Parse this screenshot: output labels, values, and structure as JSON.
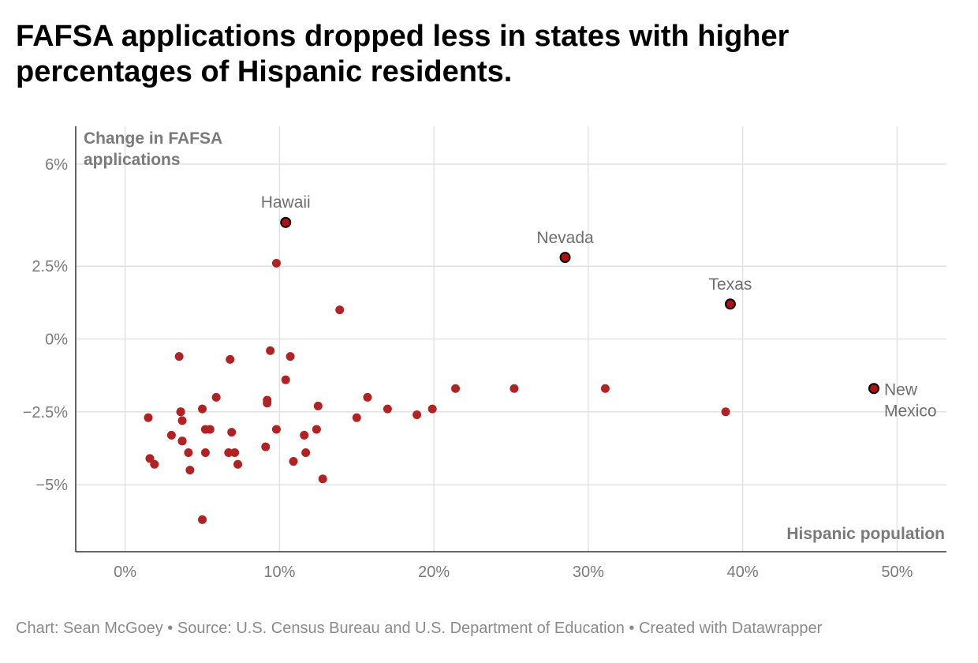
{
  "title": "FAFSA applications dropped less in states with higher percentages of Hispanic residents.",
  "footer": "Chart: Sean McGoey • Source: U.S. Census Bureau and U.S. Department of Education • Created with Datawrapper",
  "colors": {
    "point": "#b22222",
    "highlight": "#b01010",
    "highlight_stroke": "#000000",
    "grid": "#e2e2e2",
    "axis": "#333333",
    "text": "#7a7a7a"
  },
  "chart_data": {
    "type": "scatter",
    "title": "FAFSA applications dropped less in states with higher percentages of Hispanic residents.",
    "xlabel": "Hispanic population",
    "ylabel": "Change in FAFSA applications",
    "ylabel_lines": [
      "Change in FAFSA",
      "applications"
    ],
    "xlim": [
      -3.2,
      53.2
    ],
    "ylim": [
      -7.3,
      7.3
    ],
    "x_ticks": [
      0,
      10,
      20,
      30,
      40,
      50
    ],
    "x_tick_labels": [
      "0%",
      "10%",
      "20%",
      "30%",
      "40%",
      "50%"
    ],
    "y_ticks": [
      6,
      2.5,
      0,
      -2.5,
      -5
    ],
    "y_tick_labels": [
      "6%",
      "2.5%",
      "0%",
      "−2.5%",
      "−5%"
    ],
    "grid": true,
    "points": [
      {
        "x": 10.4,
        "y": 4.0,
        "label": "Hawaii",
        "highlight": true
      },
      {
        "x": 28.5,
        "y": 2.8,
        "label": "Nevada",
        "highlight": true
      },
      {
        "x": 39.2,
        "y": 1.2,
        "label": "Texas",
        "highlight": true
      },
      {
        "x": 48.5,
        "y": -1.7,
        "label": "New Mexico",
        "highlight": true
      },
      {
        "x": 9.8,
        "y": 2.6
      },
      {
        "x": 13.9,
        "y": 1.0
      },
      {
        "x": 3.5,
        "y": -0.6
      },
      {
        "x": 6.8,
        "y": -0.7
      },
      {
        "x": 9.4,
        "y": -0.4
      },
      {
        "x": 10.7,
        "y": -0.6
      },
      {
        "x": 10.4,
        "y": -1.4
      },
      {
        "x": 5.9,
        "y": -2.0
      },
      {
        "x": 9.2,
        "y": -2.1
      },
      {
        "x": 9.2,
        "y": -2.2
      },
      {
        "x": 15.7,
        "y": -2.0
      },
      {
        "x": 21.4,
        "y": -1.7
      },
      {
        "x": 25.2,
        "y": -1.7
      },
      {
        "x": 31.1,
        "y": -1.7
      },
      {
        "x": 38.9,
        "y": -2.5
      },
      {
        "x": 1.5,
        "y": -2.7
      },
      {
        "x": 3.6,
        "y": -2.5
      },
      {
        "x": 3.6,
        "y": -2.5
      },
      {
        "x": 3.7,
        "y": -2.8
      },
      {
        "x": 5.0,
        "y": -2.4
      },
      {
        "x": 12.5,
        "y": -2.3
      },
      {
        "x": 15.0,
        "y": -2.7
      },
      {
        "x": 17.0,
        "y": -2.4
      },
      {
        "x": 18.9,
        "y": -2.6
      },
      {
        "x": 19.9,
        "y": -2.4
      },
      {
        "x": 3.0,
        "y": -3.3
      },
      {
        "x": 3.7,
        "y": -3.5
      },
      {
        "x": 3.7,
        "y": -3.5
      },
      {
        "x": 5.2,
        "y": -3.1
      },
      {
        "x": 5.5,
        "y": -3.1
      },
      {
        "x": 6.9,
        "y": -3.2
      },
      {
        "x": 9.8,
        "y": -3.1
      },
      {
        "x": 11.6,
        "y": -3.3
      },
      {
        "x": 12.4,
        "y": -3.1
      },
      {
        "x": 1.6,
        "y": -4.1
      },
      {
        "x": 1.9,
        "y": -4.3
      },
      {
        "x": 4.1,
        "y": -3.9
      },
      {
        "x": 5.2,
        "y": -3.9
      },
      {
        "x": 6.7,
        "y": -3.9
      },
      {
        "x": 7.1,
        "y": -3.9
      },
      {
        "x": 7.3,
        "y": -4.3
      },
      {
        "x": 9.1,
        "y": -3.7
      },
      {
        "x": 10.9,
        "y": -4.2
      },
      {
        "x": 11.7,
        "y": -3.9
      },
      {
        "x": 4.2,
        "y": -4.5
      },
      {
        "x": 12.8,
        "y": -4.8
      },
      {
        "x": 5.0,
        "y": -6.2
      }
    ]
  }
}
